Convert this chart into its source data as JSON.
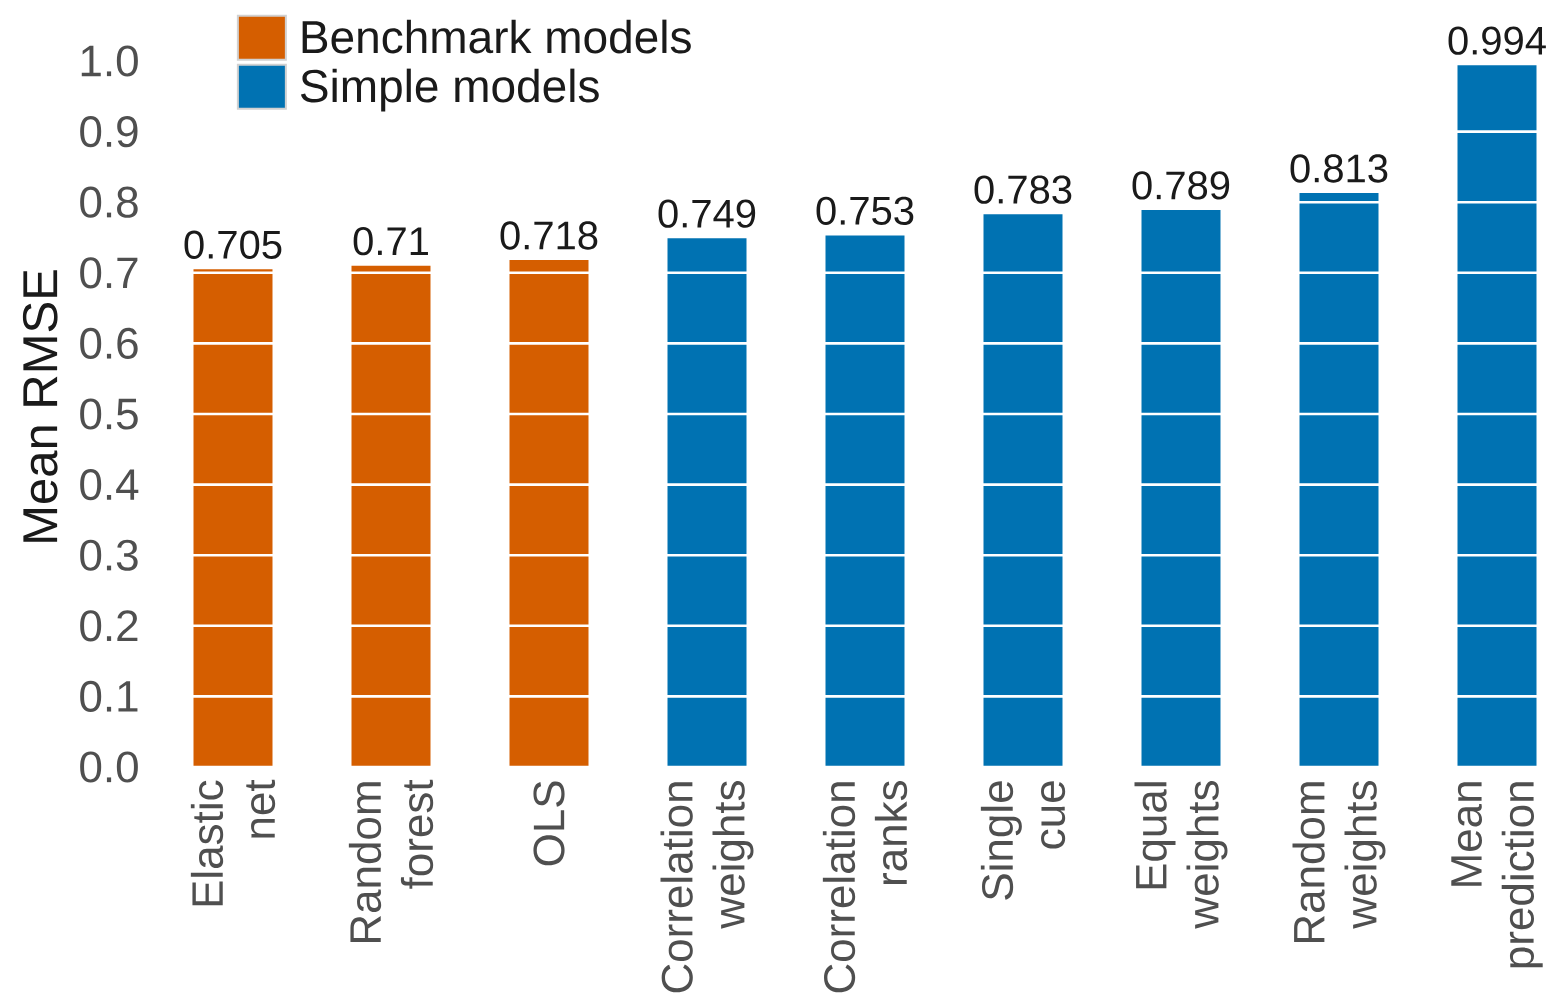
{
  "chart_data": {
    "type": "bar",
    "ylabel": "Mean RMSE",
    "categories": [
      "Elastic net",
      "Random forest",
      "OLS",
      "Correlation weights",
      "Correlation ranks",
      "Single cue",
      "Equal weights",
      "Random weights",
      "Mean prediction"
    ],
    "series": [
      {
        "name": "Benchmark models",
        "color": "#d55e00",
        "values": [
          0.705,
          0.71,
          0.718,
          null,
          null,
          null,
          null,
          null,
          null
        ]
      },
      {
        "name": "Simple models",
        "color": "#0072b2",
        "values": [
          null,
          null,
          null,
          0.749,
          0.753,
          0.783,
          0.789,
          0.813,
          0.994
        ]
      }
    ],
    "ylim": [
      0,
      1
    ],
    "yticks": [
      {
        "value": 0,
        "label": "0.0"
      },
      0.1,
      0.2,
      0.3,
      0.4,
      0.5,
      0.6,
      0.7,
      0.8,
      0.9,
      {
        "value": 1,
        "label": "1.0"
      }
    ],
    "grid": "y",
    "legend": "top left",
    "data_labels": true
  }
}
